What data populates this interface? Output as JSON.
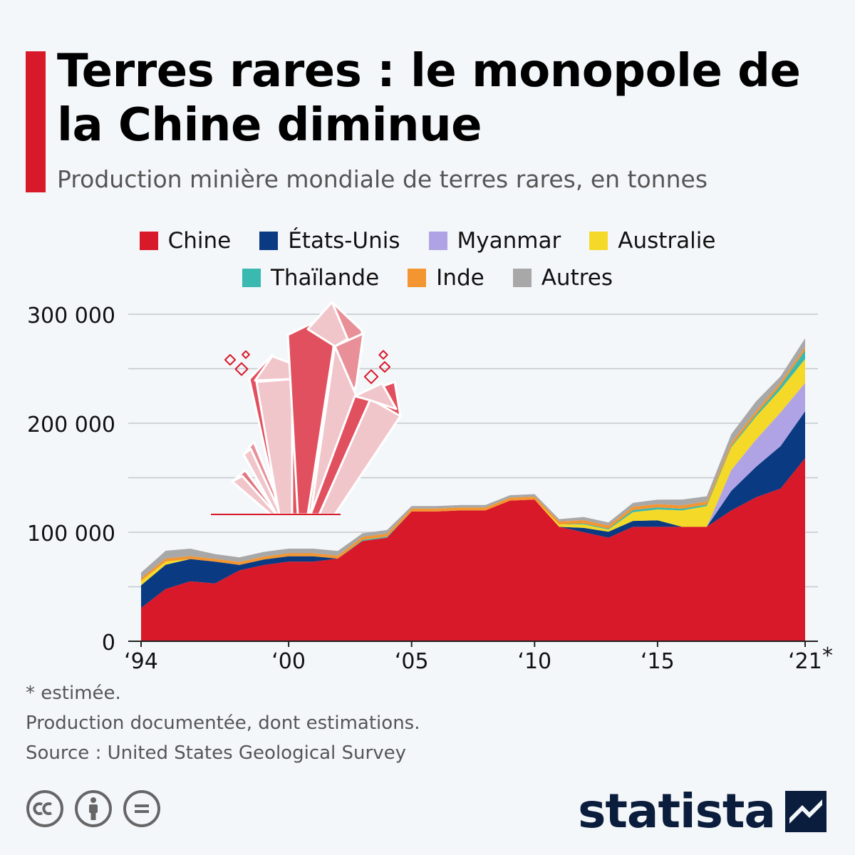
{
  "header": {
    "title": "Terres rares : le monopole de la Chine diminue",
    "subtitle": "Production minière mondiale de terres rares, en tonnes"
  },
  "colors": {
    "accent": "#d7192a",
    "chine": "#d7192a",
    "etats_unis": "#0a3a82",
    "myanmar": "#b0a3e5",
    "australie": "#f5d928",
    "thailande": "#39b9b0",
    "inde": "#f39530",
    "autres": "#a8a8a8",
    "brand": "#0b1d3d"
  },
  "chart_data": {
    "type": "area",
    "stacked": true,
    "title": "Terres rares : le monopole de la Chine diminue",
    "subtitle": "Production minière mondiale de terres rares, en tonnes",
    "x": [
      1994,
      1995,
      1996,
      1997,
      1998,
      1999,
      2000,
      2001,
      2002,
      2003,
      2004,
      2005,
      2006,
      2007,
      2008,
      2009,
      2010,
      2011,
      2012,
      2013,
      2014,
      2015,
      2016,
      2017,
      2018,
      2019,
      2020,
      2021
    ],
    "x_tick_values": [
      1994,
      2000,
      2005,
      2010,
      2015,
      2021
    ],
    "x_tick_labels": [
      "‘94",
      "‘00",
      "‘05",
      "‘10",
      "‘15",
      "‘21"
    ],
    "x_tick_note": "*",
    "ylim": [
      0,
      300000
    ],
    "y_ticks": [
      0,
      100000,
      200000,
      300000
    ],
    "y_tick_labels": [
      "0",
      "100 000",
      "200 000",
      "300 000"
    ],
    "grid": true,
    "legend_position": "top",
    "series": [
      {
        "name": "Chine",
        "key": "chine",
        "values": [
          30600,
          48000,
          55000,
          53000,
          65000,
          70000,
          73000,
          73000,
          75800,
          92000,
          95000,
          119000,
          119000,
          120000,
          120000,
          129000,
          130000,
          105000,
          100000,
          95000,
          105000,
          105000,
          105000,
          105000,
          120000,
          132000,
          140000,
          168000
        ]
      },
      {
        "name": "États-Unis",
        "key": "etats_unis",
        "values": [
          20700,
          22200,
          20400,
          20000,
          5000,
          5000,
          5000,
          5000,
          0,
          0,
          0,
          0,
          0,
          0,
          0,
          0,
          0,
          0,
          4000,
          5500,
          5400,
          5900,
          0,
          0,
          18000,
          28000,
          39000,
          43000
        ]
      },
      {
        "name": "Myanmar",
        "key": "myanmar",
        "values": [
          0,
          0,
          0,
          0,
          0,
          0,
          0,
          0,
          0,
          0,
          0,
          0,
          0,
          0,
          0,
          0,
          0,
          0,
          0,
          0,
          0,
          0,
          0,
          0,
          19000,
          25000,
          31000,
          26000
        ]
      },
      {
        "name": "Australie",
        "key": "australie",
        "values": [
          4000,
          3000,
          0,
          0,
          0,
          0,
          0,
          0,
          0,
          0,
          0,
          0,
          0,
          0,
          0,
          0,
          0,
          2200,
          3200,
          2000,
          8000,
          10000,
          15000,
          19000,
          21000,
          21000,
          21000,
          22000
        ]
      },
      {
        "name": "Thaïlande",
        "key": "thailande",
        "values": [
          0,
          0,
          0,
          0,
          0,
          0,
          0,
          0,
          0,
          1000,
          1000,
          0,
          0,
          0,
          0,
          0,
          0,
          0,
          800,
          800,
          2000,
          1900,
          1600,
          1300,
          1000,
          1900,
          3600,
          8000
        ]
      },
      {
        "name": "Inde",
        "key": "inde",
        "values": [
          2500,
          2700,
          2700,
          2700,
          2700,
          2700,
          2700,
          2700,
          2700,
          2700,
          2700,
          2700,
          2700,
          2700,
          2700,
          2700,
          2700,
          2800,
          2900,
          2900,
          3000,
          3000,
          3000,
          3000,
          3000,
          3000,
          2900,
          2900
        ]
      },
      {
        "name": "Autres",
        "key": "autres",
        "values": [
          5200,
          7100,
          6900,
          4300,
          4300,
          4300,
          4300,
          4300,
          4300,
          3300,
          3300,
          2300,
          2300,
          2300,
          2300,
          2300,
          2300,
          2000,
          3100,
          2800,
          3600,
          4100,
          5400,
          4700,
          8000,
          9100,
          5500,
          8100
        ]
      }
    ]
  },
  "legend": {
    "row1": [
      "Chine",
      "États-Unis",
      "Myanmar",
      "Australie"
    ],
    "row2": [
      "Thaïlande",
      "Inde",
      "Autres"
    ]
  },
  "footer": {
    "note_estimate": "* estimée.",
    "note_documented": "Production documentée, dont estimations.",
    "source": "Source : United States Geological Survey",
    "brand_name": "statista"
  }
}
